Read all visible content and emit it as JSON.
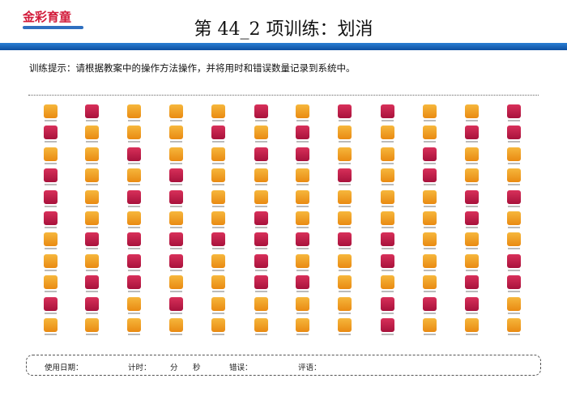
{
  "header": {
    "logo": "金彩育童",
    "title": "第 44_2 项训练：划消"
  },
  "instruction": "训练提示：请根据教案中的操作方法操作，并将用时和错误数量记录到系统中。",
  "footer": {
    "date": "使用日期：",
    "timer": "计时：",
    "minutes": "分",
    "seconds": "秒",
    "errors": "错误：",
    "comment": "评语："
  }
}
